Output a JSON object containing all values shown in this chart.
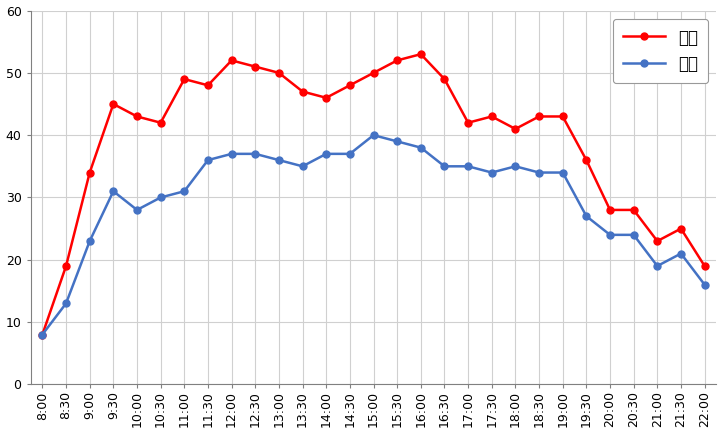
{
  "x_labels": [
    "8:00",
    "8:30",
    "9:00",
    "9:30",
    "10:00",
    "10:30",
    "11:00",
    "11:30",
    "12:00",
    "12:30",
    "13:00",
    "13:30",
    "14:00",
    "14:30",
    "15:00",
    "15:30",
    "16:00",
    "16:30",
    "17:00",
    "17:30",
    "18:00",
    "18:30",
    "19:00",
    "19:30",
    "20:00",
    "20:30",
    "21:00",
    "21:30",
    "22:00"
  ],
  "kyujitsu": [
    8,
    19,
    34,
    45,
    43,
    42,
    49,
    48,
    52,
    51,
    50,
    47,
    46,
    48,
    50,
    52,
    53,
    49,
    42,
    43,
    41,
    43,
    43,
    36,
    28,
    28,
    23,
    25,
    19
  ],
  "heijitsu": [
    8,
    13,
    23,
    31,
    28,
    30,
    31,
    36,
    37,
    37,
    36,
    35,
    37,
    37,
    40,
    39,
    38,
    35,
    35,
    34,
    35,
    34,
    34,
    27,
    24,
    24,
    19,
    21,
    16
  ],
  "kyujitsu_color": "#FF0000",
  "heijitsu_color": "#4472C4",
  "ylim": [
    0,
    60
  ],
  "yticks": [
    0,
    10,
    20,
    30,
    40,
    50,
    60
  ],
  "legend_kyujitsu": "休日",
  "legend_heijitsu": "平日",
  "bg_color": "#FFFFFF",
  "grid_color": "#D0D0D0",
  "marker_size": 5,
  "linewidth": 1.8,
  "tick_fontsize": 9,
  "legend_fontsize": 12
}
